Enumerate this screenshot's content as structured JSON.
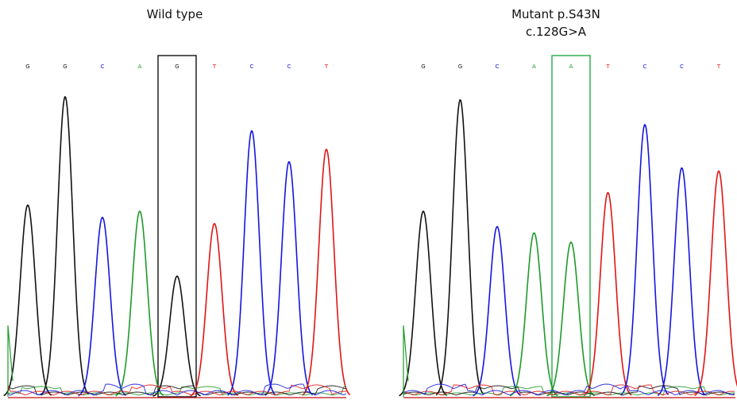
{
  "colors": {
    "A": "#1e9a2a",
    "C": "#1515e0",
    "G": "#111111",
    "T": "#e01515",
    "wt_box": "#111111",
    "mut_box": "#22aa44"
  },
  "chart_data": [
    {
      "type": "line",
      "title": "Wild type",
      "bases": [
        "G",
        "G",
        "C",
        "A",
        "G",
        "T",
        "C",
        "C",
        "T"
      ],
      "highlight_index": 4,
      "peaks": [
        {
          "base": "G",
          "height": 0.62
        },
        {
          "base": "G",
          "height": 0.97
        },
        {
          "base": "C",
          "height": 0.58
        },
        {
          "base": "A",
          "height": 0.6
        },
        {
          "base": "G",
          "height": 0.39
        },
        {
          "base": "T",
          "height": 0.56
        },
        {
          "base": "C",
          "height": 0.86
        },
        {
          "base": "C",
          "height": 0.76
        },
        {
          "base": "T",
          "height": 0.8
        }
      ]
    },
    {
      "type": "line",
      "title": "Mutant p.S43N",
      "subtitle": "c.128G>A",
      "bases": [
        "G",
        "G",
        "C",
        "A",
        "A",
        "T",
        "C",
        "C",
        "T"
      ],
      "highlight_index": 4,
      "peaks": [
        {
          "base": "G",
          "height": 0.6
        },
        {
          "base": "G",
          "height": 0.96
        },
        {
          "base": "C",
          "height": 0.55
        },
        {
          "base": "A",
          "height": 0.53
        },
        {
          "base": "A",
          "height": 0.5
        },
        {
          "base": "T",
          "height": 0.66
        },
        {
          "base": "C",
          "height": 0.88
        },
        {
          "base": "C",
          "height": 0.74
        },
        {
          "base": "T",
          "height": 0.73
        }
      ]
    }
  ]
}
